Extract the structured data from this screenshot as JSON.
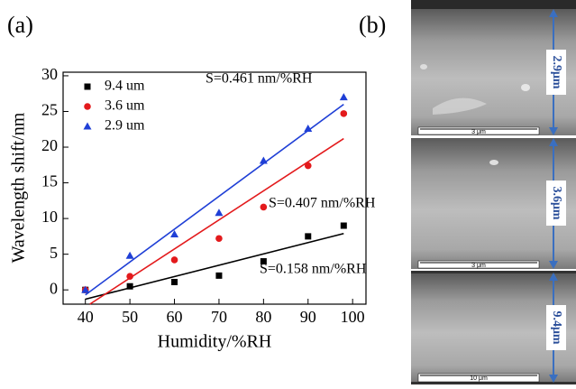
{
  "panel_labels": [
    "(a)",
    "(b)"
  ],
  "chart_data": {
    "type": "scatter",
    "x_label": "Humidity/%RH",
    "y_label": "Wavelength shift/nm",
    "xlim": [
      35,
      103
    ],
    "ylim": [
      -2,
      30.5
    ],
    "xticks": [
      40,
      50,
      60,
      70,
      80,
      90,
      100
    ],
    "yticks": [
      0,
      5,
      10,
      15,
      20,
      25,
      30
    ],
    "legend": "top-left",
    "series": [
      {
        "name": "9.4 um",
        "color": "#000000",
        "marker": "square",
        "x": [
          40,
          50,
          60,
          70,
          80,
          90,
          98
        ],
        "values": [
          0,
          0.5,
          1.1,
          2,
          4,
          7.5,
          9
        ]
      },
      {
        "name": "3.6 um",
        "color": "#e31a1c",
        "marker": "circle",
        "x": [
          40,
          50,
          60,
          70,
          80,
          90,
          98
        ],
        "values": [
          0,
          1.9,
          4.2,
          7.2,
          11.6,
          17.4,
          24.7
        ]
      },
      {
        "name": "2.9 um",
        "color": "#1f3fd6",
        "marker": "triangle",
        "x": [
          40,
          50,
          60,
          70,
          80,
          90,
          98
        ],
        "values": [
          0,
          4.8,
          7.8,
          10.8,
          18.1,
          22.6,
          27
        ]
      }
    ],
    "fits": [
      {
        "color": "#000000",
        "x": [
          40,
          98
        ],
        "values": [
          -1.3,
          7.9
        ]
      },
      {
        "color": "#e31a1c",
        "x": [
          41,
          98
        ],
        "values": [
          -2,
          21.2
        ]
      },
      {
        "color": "#1f3fd6",
        "x": [
          40,
          98
        ],
        "values": [
          -0.7,
          26
        ]
      }
    ],
    "annotations": [
      "S=0.158 nm/%RH",
      "S=0.407 nm/%RH",
      "S=0.461 nm/%RH"
    ]
  },
  "images": [
    {
      "scale_bar": "3 μm",
      "diameter": "2.9μm"
    },
    {
      "scale_bar": "3 μm",
      "diameter": "3.6μm"
    },
    {
      "scale_bar": "10 μm",
      "diameter": "9.4μm"
    }
  ]
}
